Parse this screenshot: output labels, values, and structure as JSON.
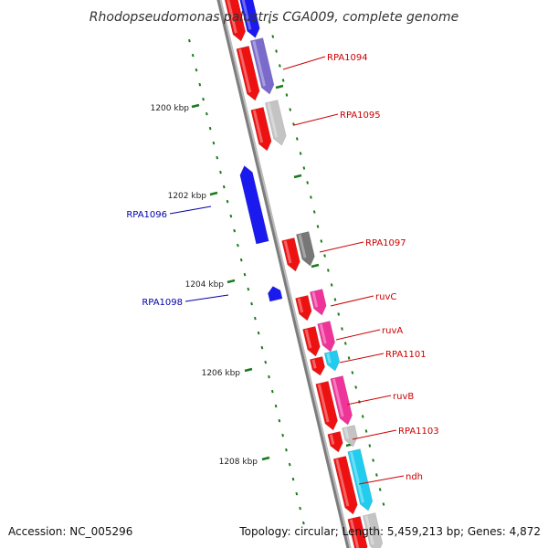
{
  "title": "Rhodopseudomonas palustris CGA009, complete genome",
  "footer": {
    "accession": "Accession: NC_005296",
    "summary": "Topology: circular; Length: 5,459,213 bp; Genes: 4,872"
  },
  "scale_ticks": [
    "1200 kbp",
    "1202 kbp",
    "1204 kbp",
    "1206 kbp",
    "1208 kbp"
  ],
  "colors": {
    "backbone": "#888888",
    "tick": "#1a7a1a",
    "forward_label": "#cc0000",
    "reverse_label": "#0000aa",
    "forward_gene": "#ee1111",
    "reverse_gene": "#1a1aee",
    "magenta": "#ee3399",
    "cyan": "#22ccee",
    "lavender": "#7a6acc",
    "lightgray": "#c4c4c4",
    "darkgray": "#777777"
  },
  "gene_labels": {
    "forward": [
      "RPA1094",
      "RPA1095",
      "RPA1097",
      "ruvC",
      "ruvA",
      "RPA1101",
      "ruvB",
      "RPA1103",
      "ndh"
    ],
    "reverse": [
      "RPA1096",
      "RPA1098"
    ]
  }
}
